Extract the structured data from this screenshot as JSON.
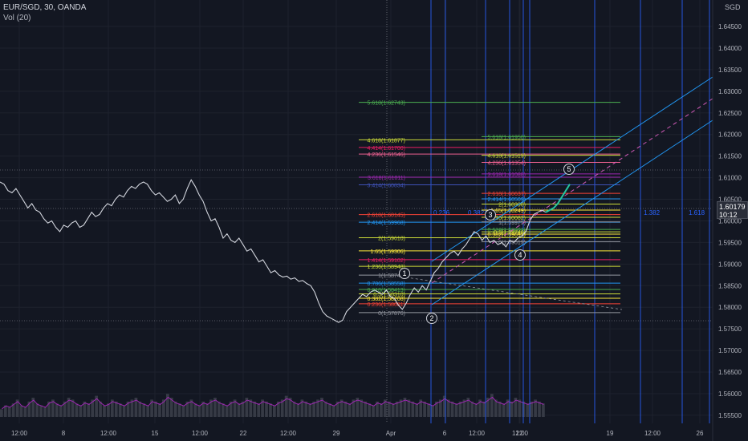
{
  "header": {
    "symbol": "EUR/SGD, 30, OANDA",
    "volume_label": "Vol (20)"
  },
  "axis_unit": "SGD",
  "last_price": {
    "price": "1.60179",
    "countdown": "10:12"
  },
  "colors": {
    "background": "#131722",
    "grid": "#1e222d",
    "price_line": "#d1d4dc",
    "volume": "#363a45",
    "volume_ma": "#9c27b0",
    "projection": "#26c6a0",
    "channel": "#2196f3",
    "channel_mid": "#d15ab8",
    "time_fib": "#2962ff",
    "crosshair": "#9598a1"
  },
  "chart_data": {
    "type": "line",
    "title": "EUR/SGD, 30, OANDA",
    "xlabel": "",
    "ylabel": "SGD",
    "ylim": [
      1.5525,
      1.6475
    ],
    "x_ticks": [
      "12:00",
      "8",
      "12:00",
      "15",
      "12:00",
      "22",
      "12:00",
      "29",
      "Apr",
      "6",
      "12:00",
      "12",
      "12:00",
      "19",
      "12:00",
      "26"
    ],
    "y_ticks": [
      "1.64500",
      "1.64000",
      "1.63500",
      "1.63000",
      "1.62500",
      "1.62000",
      "1.61500",
      "1.61000",
      "1.60500",
      "1.60000",
      "1.59500",
      "1.59000",
      "1.58500",
      "1.58000",
      "1.57500",
      "1.57000",
      "1.56500",
      "1.56000",
      "1.55500"
    ],
    "series": [
      {
        "values": [
          1.609,
          1.6085,
          1.607,
          1.6065,
          1.6075,
          1.606,
          1.6045,
          1.603,
          1.604,
          1.6025,
          1.602,
          1.6005,
          1.5995,
          1.6,
          1.5985,
          1.5975,
          1.599,
          1.5985,
          1.5995,
          1.6,
          1.5985,
          1.599,
          1.6005,
          1.602,
          1.601,
          1.6015,
          1.603,
          1.604,
          1.6035,
          1.605,
          1.606,
          1.6055,
          1.607,
          1.608,
          1.6075,
          1.6085,
          1.609,
          1.6085,
          1.607,
          1.606,
          1.6065,
          1.6055,
          1.6045,
          1.605,
          1.606,
          1.604,
          1.605,
          1.6075,
          1.6095,
          1.608,
          1.606,
          1.6045,
          1.602,
          1.6,
          1.6005,
          1.5985,
          1.596,
          1.597,
          1.5955,
          1.595,
          1.596,
          1.5945,
          1.593,
          1.5935,
          1.592,
          1.5905,
          1.591,
          1.5895,
          1.588,
          1.5885,
          1.5875,
          1.587,
          1.5872,
          1.5865,
          1.5868,
          1.586,
          1.5862,
          1.5855,
          1.585,
          1.5835,
          1.581,
          1.579,
          1.578,
          1.5775,
          1.577,
          1.5765,
          1.577,
          1.579,
          1.58,
          1.581,
          1.582,
          1.583,
          1.5825,
          1.5835,
          1.584,
          1.5835,
          1.583,
          1.584,
          1.5825,
          1.582,
          1.5805,
          1.5795,
          1.581,
          1.583,
          1.5845,
          1.5835,
          1.585,
          1.584,
          1.586,
          1.588,
          1.589,
          1.5905,
          1.5915,
          1.5925,
          1.593,
          1.592,
          1.5935,
          1.5945,
          1.596,
          1.5975,
          1.597,
          1.5955,
          1.5965,
          1.595,
          1.5955,
          1.5945,
          1.595,
          1.594,
          1.5955,
          1.595,
          1.596,
          1.5965,
          1.5975,
          1.6,
          1.6015,
          1.602,
          1.6025,
          1.602
        ]
      },
      {
        "name": "",
        "values": [
          1.602,
          1.6025,
          1.603,
          1.604,
          1.6055,
          1.607,
          1.6085
        ]
      }
    ],
    "volume": {
      "label": "Vol (20)",
      "values": [
        4,
        6,
        5,
        7,
        9,
        6,
        5,
        8,
        10,
        7,
        6,
        5,
        8,
        9,
        7,
        6,
        8,
        10,
        9,
        7,
        6,
        8,
        7,
        9,
        11,
        8,
        6,
        7,
        9,
        8,
        7,
        6,
        8,
        9,
        10,
        8,
        7,
        6,
        9,
        8,
        7,
        9,
        12,
        10,
        8,
        7,
        6,
        8,
        9,
        7,
        6,
        8,
        7,
        9,
        10,
        8,
        7,
        6,
        8,
        9,
        7,
        8,
        10,
        9,
        8,
        7,
        9,
        8,
        7,
        6,
        8,
        9,
        11,
        10,
        8,
        7,
        9,
        8,
        7,
        8,
        9,
        10,
        8,
        7,
        6,
        8,
        9,
        8,
        7,
        9,
        10,
        9,
        8,
        7,
        6,
        8,
        7,
        9,
        8,
        7,
        8,
        9,
        10,
        9,
        8,
        7,
        9,
        8,
        7,
        6,
        8,
        9,
        11,
        9,
        8,
        7,
        8,
        9,
        10,
        8,
        7,
        9,
        8,
        10,
        12,
        9,
        8,
        7,
        9,
        8,
        10,
        9,
        8,
        7,
        8,
        9,
        8,
        7
      ]
    },
    "fib_labels_left": [
      {
        "text": "5.618(1.62743)",
        "price": 1.62743,
        "color": "#4caf50"
      },
      {
        "text": "4.618(1.61877)",
        "price": 1.61877,
        "color": "#cddc39"
      },
      {
        "text": "4.414(1.61700)",
        "price": 1.617,
        "color": "#e91e63"
      },
      {
        "text": "4.236(1.61546)",
        "price": 1.61546,
        "color": "#f06292"
      },
      {
        "text": "3.618(1.61011)",
        "price": 1.61011,
        "color": "#9c27b0"
      },
      {
        "text": "3.414(1.60834)",
        "price": 1.60834,
        "color": "#3f51b5"
      },
      {
        "text": "2.618(1.60145)",
        "price": 1.60145,
        "color": "#f44336"
      },
      {
        "text": "2.414(1.59968)",
        "price": 1.59968,
        "color": "#2196f3"
      },
      {
        "text": "2(1.59610)",
        "price": 1.5961,
        "color": "#cddc39"
      },
      {
        "text": "1.65(1.59306)",
        "price": 1.59306,
        "color": "#ffeb3b"
      },
      {
        "text": "1.414(1.59102)",
        "price": 1.59102,
        "color": "#e91e63"
      },
      {
        "text": "1.236(1.58948)",
        "price": 1.58948,
        "color": "#cddc39"
      },
      {
        "text": "1(1.58743)",
        "price": 1.58743,
        "color": "#9598a1"
      },
      {
        "text": "0.786(1.58558)",
        "price": 1.58558,
        "color": "#2196f3"
      },
      {
        "text": "0.618(1.58413)",
        "price": 1.58413,
        "color": "#4caf50"
      },
      {
        "text": "0.5(1.58310)",
        "price": 1.5831,
        "color": "#cddc39"
      },
      {
        "text": "0.382(1.58208)",
        "price": 1.58208,
        "color": "#ffeb3b"
      },
      {
        "text": "0.236(1.58081)",
        "price": 1.58081,
        "color": "#f44336"
      },
      {
        "text": "0(1.57876)",
        "price": 1.57876,
        "color": "#9598a1"
      }
    ],
    "fib_labels_right": [
      {
        "text": "5.618(1.61950)",
        "price": 1.6195,
        "color": "#4caf50"
      },
      {
        "text": "4.618(1.61519)",
        "price": 1.61519,
        "color": "#cddc39"
      },
      {
        "text": "4.236(1.61354)",
        "price": 1.61354,
        "color": "#f06292"
      },
      {
        "text": "3.618(1.61088)",
        "price": 1.61088,
        "color": "#9c27b0"
      },
      {
        "text": "2.618(1.60637)",
        "price": 1.60637,
        "color": "#f44336"
      },
      {
        "text": "2.414(1.60509)",
        "price": 1.60509,
        "color": "#2196f3"
      },
      {
        "text": "2(1.60390)",
        "price": 1.6039,
        "color": "#cddc39"
      },
      {
        "text": "1.65(1.60249)",
        "price": 1.60249,
        "color": "#ffeb3b"
      },
      {
        "text": "1.236(1.60082)",
        "price": 1.60082,
        "color": "#cddc39"
      },
      {
        "text": "1(1.59975)",
        "price": 1.59975,
        "color": "#9598a1"
      },
      {
        "text": "0.618(1.59801)",
        "price": 1.59801,
        "color": "#4caf50"
      },
      {
        "text": "0.5(1.59746)",
        "price": 1.59746,
        "color": "#cddc39"
      },
      {
        "text": "0.382(1.59693)",
        "price": 1.59693,
        "color": "#ffeb3b"
      },
      {
        "text": "0(1.59519)",
        "price": 1.59519,
        "color": "#9598a1"
      }
    ],
    "time_fib_labels": [
      "0.236",
      "0.382",
      "1.382",
      "1.618"
    ],
    "wave_labels": [
      "1",
      "2",
      "3",
      "4",
      "5"
    ]
  }
}
